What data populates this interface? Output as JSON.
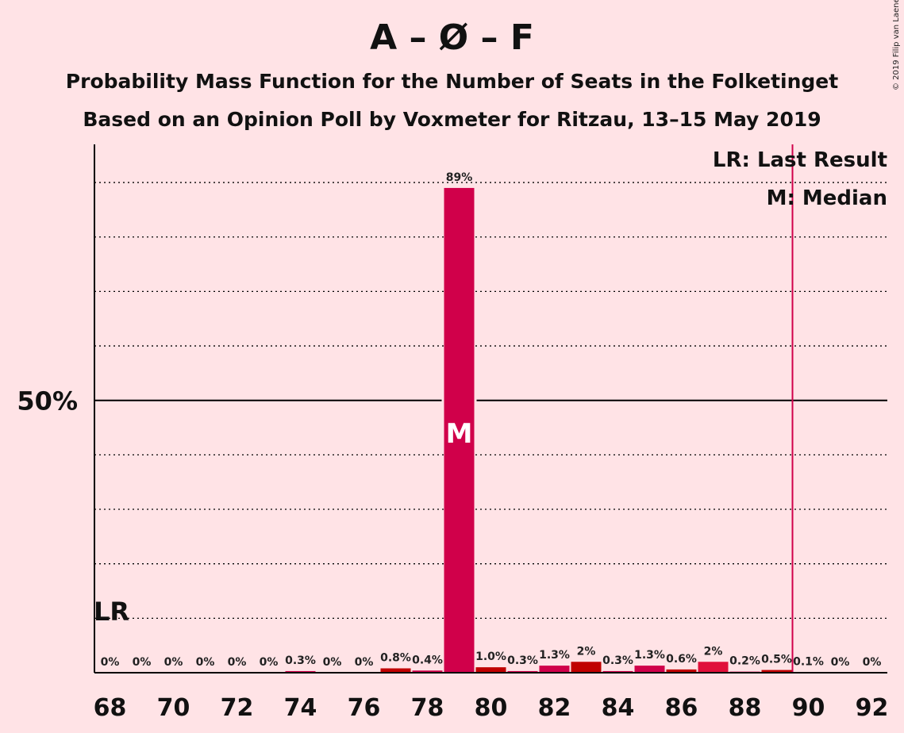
{
  "header": {
    "title": "A – Ø – F",
    "subtitle": "Probability Mass Function for the Number of Seats in the Folketinget",
    "subtitle2": "Based on an Opinion Poll by Voxmeter for Ritzau, 13–15 May 2019",
    "copyright": "© 2019 Filip van Laenen"
  },
  "legend": {
    "last_result": "LR: Last Result",
    "median": "M: Median"
  },
  "colors": {
    "background": "#FFE3E6",
    "bar_primary": "#D0004A",
    "bar_dark": "#C00000",
    "bar_alt": "#E0103A",
    "last_result_line": "#D0004A"
  },
  "chart_data": {
    "type": "bar",
    "categories": [
      68,
      69,
      70,
      71,
      72,
      73,
      74,
      75,
      76,
      77,
      78,
      79,
      80,
      81,
      82,
      83,
      84,
      85,
      86,
      87,
      88,
      89,
      90,
      91,
      92
    ],
    "values": [
      0,
      0,
      0,
      0,
      0,
      0,
      0.3,
      0,
      0,
      0.8,
      0.4,
      89,
      1.0,
      0.3,
      1.3,
      2,
      0.3,
      1.3,
      0.6,
      2,
      0.2,
      0.5,
      0.1,
      0,
      0
    ],
    "labels": [
      "0%",
      "0%",
      "0%",
      "0%",
      "0%",
      "0%",
      "0.3%",
      "0%",
      "0%",
      "0.8%",
      "0.4%",
      "89%",
      "1.0%",
      "0.3%",
      "1.3%",
      "2%",
      "0.3%",
      "1.3%",
      "0.6%",
      "2%",
      "0.2%",
      "0.5%",
      "0.1%",
      "0%",
      "0%"
    ],
    "bar_colors": [
      "#D0004A",
      "#D0004A",
      "#D0004A",
      "#D0004A",
      "#D0004A",
      "#D0004A",
      "#D0004A",
      "#D0004A",
      "#D0004A",
      "#C00000",
      "#D0004A",
      "#D0004A",
      "#C00000",
      "#D0004A",
      "#D0004A",
      "#C00000",
      "#D0004A",
      "#D0004A",
      "#C00000",
      "#E0103A",
      "#D0004A",
      "#C00000",
      "#D0004A",
      "#D0004A",
      "#D0004A"
    ],
    "xticks": [
      "68",
      "70",
      "72",
      "74",
      "76",
      "78",
      "80",
      "82",
      "84",
      "86",
      "88",
      "90",
      "92"
    ],
    "y_tick_label": "50%",
    "y_tick_value": 50,
    "ylim": [
      0,
      97
    ],
    "grid_dotted": [
      10,
      20,
      30,
      40,
      60,
      70,
      80,
      90
    ],
    "median": 79,
    "median_label": "M",
    "last_result": 89.5,
    "last_result_label": "LR"
  }
}
